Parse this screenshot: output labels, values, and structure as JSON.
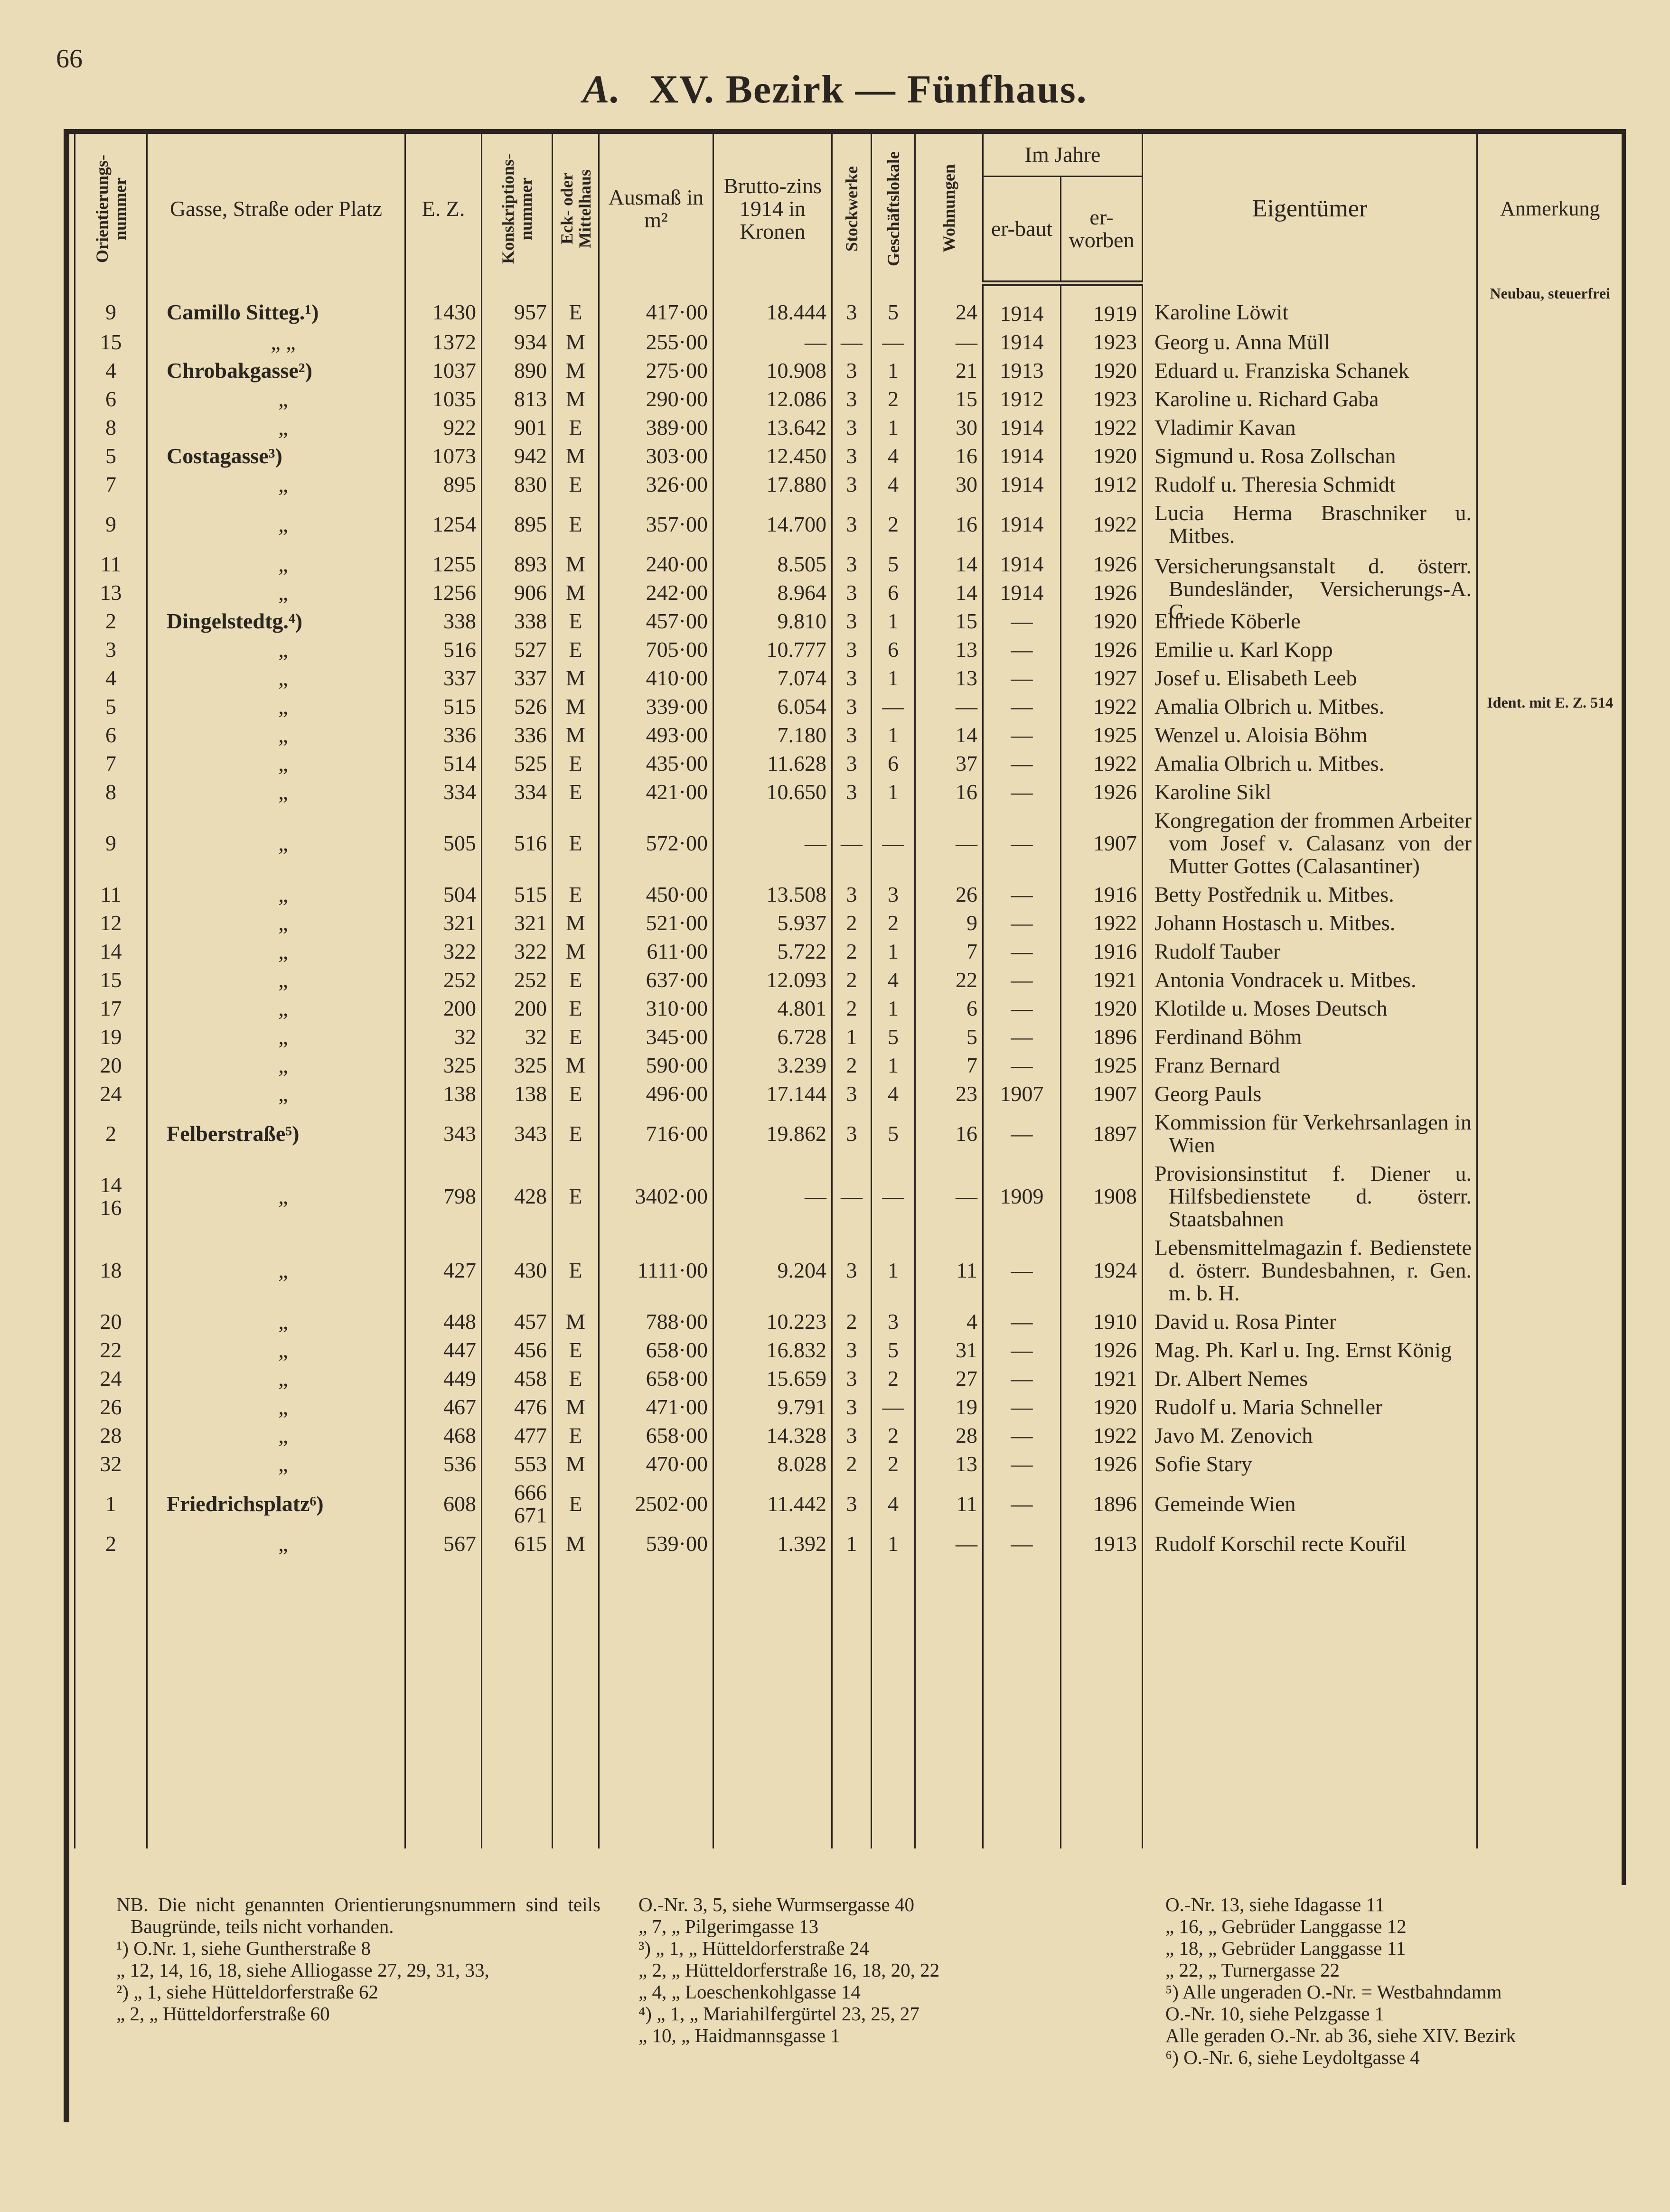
{
  "header": {
    "page_number": "66",
    "section": "A.",
    "title": "XV. Bezirk — Fünfhaus."
  },
  "table": {
    "columns": [
      "Orientierungs-nummer",
      "Gasse, Straße oder Platz",
      "E. Z.",
      "Konskriptions-nummer",
      "Eck- oder Mittelhaus",
      "Ausmaß in m²",
      "Brutto-zins 1914 in Kronen",
      "Stockwerke",
      "Geschäftslokale",
      "Wohnungen",
      "er-baut",
      "er-worben",
      "Eigentümer",
      "Anmerkung"
    ],
    "group": "Im Jahre",
    "rows": [
      [
        "9",
        "Camillo Sitteg.¹)",
        "1430",
        "957",
        "E",
        "417·00",
        "18.444",
        "3",
        "5",
        "24",
        "1914",
        "1919",
        "Karoline Löwit",
        "Neubau, steuerfrei"
      ],
      [
        "15",
        "„ „",
        "1372",
        "934",
        "M",
        "255·00",
        "—",
        "—",
        "—",
        "—",
        "1914",
        "1923",
        "Georg u. Anna Müll",
        null
      ],
      [
        "4",
        "Chrobakgasse²)",
        "1037",
        "890",
        "M",
        "275·00",
        "10.908",
        "3",
        "1",
        "21",
        "1913",
        "1920",
        "Eduard u. Franziska Schanek",
        null
      ],
      [
        "6",
        "„",
        "1035",
        "813",
        "M",
        "290·00",
        "12.086",
        "3",
        "2",
        "15",
        "1912",
        "1923",
        "Karoline u. Richard Gaba",
        null
      ],
      [
        "8",
        "„",
        "922",
        "901",
        "E",
        "389·00",
        "13.642",
        "3",
        "1",
        "30",
        "1914",
        "1922",
        "Vladimir Kavan",
        null
      ],
      [
        "5",
        "Costagasse³)",
        "1073",
        "942",
        "M",
        "303·00",
        "12.450",
        "3",
        "4",
        "16",
        "1914",
        "1920",
        "Sigmund u. Rosa Zollschan",
        null
      ],
      [
        "7",
        "„",
        "895",
        "830",
        "E",
        "326·00",
        "17.880",
        "3",
        "4",
        "30",
        "1914",
        "1912",
        "Rudolf u. Theresia Schmidt",
        null
      ],
      [
        "9",
        "„",
        "1254",
        "895",
        "E",
        "357·00",
        "14.700",
        "3",
        "2",
        "16",
        "1914",
        "1922",
        "Lucia Herma Braschniker u. Mitbes.",
        null
      ],
      [
        "11",
        "„",
        "1255",
        "893",
        "M",
        "240·00",
        "8.505",
        "3",
        "5",
        "14",
        "1914",
        "1926",
        "Versicherungsanstalt d. österr. Bundesländer, Versicherungs-A. G.",
        null
      ],
      [
        "13",
        "„",
        "1256",
        "906",
        "M",
        "242·00",
        "8.964",
        "3",
        "6",
        "14",
        "1914",
        "1926",
        null,
        null
      ],
      [
        "2",
        "Dingelstedtg.⁴)",
        "338",
        "338",
        "E",
        "457·00",
        "9.810",
        "3",
        "1",
        "15",
        "—",
        "1920",
        "Elfriede Köberle",
        null
      ],
      [
        "3",
        "„",
        "516",
        "527",
        "E",
        "705·00",
        "10.777",
        "3",
        "6",
        "13",
        "—",
        "1926",
        "Emilie u. Karl Kopp",
        null
      ],
      [
        "4",
        "„",
        "337",
        "337",
        "M",
        "410·00",
        "7.074",
        "3",
        "1",
        "13",
        "—",
        "1927",
        "Josef u. Elisabeth Leeb",
        null
      ],
      [
        "5",
        "„",
        "515",
        "526",
        "M",
        "339·00",
        "6.054",
        "3",
        "—",
        "—",
        "—",
        "1922",
        "Amalia Olbrich u. Mitbes.",
        "Ident. mit E. Z. 514"
      ],
      [
        "6",
        "„",
        "336",
        "336",
        "M",
        "493·00",
        "7.180",
        "3",
        "1",
        "14",
        "—",
        "1925",
        "Wenzel u. Aloisia Böhm",
        null
      ],
      [
        "7",
        "„",
        "514",
        "525",
        "E",
        "435·00",
        "11.628",
        "3",
        "6",
        "37",
        "—",
        "1922",
        "Amalia Olbrich u. Mitbes.",
        null
      ],
      [
        "8",
        "„",
        "334",
        "334",
        "E",
        "421·00",
        "10.650",
        "3",
        "1",
        "16",
        "—",
        "1926",
        "Karoline Sikl",
        null
      ],
      [
        "9",
        "„",
        "505",
        "516",
        "E",
        "572·00",
        "—",
        "—",
        "—",
        "—",
        "—",
        "1907",
        "Kongregation der frommen Arbeiter vom Josef v. Calasanz von der Mutter Gottes (Calasantiner)",
        null
      ],
      [
        "11",
        "„",
        "504",
        "515",
        "E",
        "450·00",
        "13.508",
        "3",
        "3",
        "26",
        "—",
        "1916",
        "Betty Postřednik u. Mitbes.",
        null
      ],
      [
        "12",
        "„",
        "321",
        "321",
        "M",
        "521·00",
        "5.937",
        "2",
        "2",
        "9",
        "—",
        "1922",
        "Johann Hostasch u. Mitbes.",
        null
      ],
      [
        "14",
        "„",
        "322",
        "322",
        "M",
        "611·00",
        "5.722",
        "2",
        "1",
        "7",
        "—",
        "1916",
        "Rudolf Tauber",
        null
      ],
      [
        "15",
        "„",
        "252",
        "252",
        "E",
        "637·00",
        "12.093",
        "2",
        "4",
        "22",
        "—",
        "1921",
        "Antonia Vondracek u. Mitbes.",
        null
      ],
      [
        "17",
        "„",
        "200",
        "200",
        "E",
        "310·00",
        "4.801",
        "2",
        "1",
        "6",
        "—",
        "1920",
        "Klotilde u. Moses Deutsch",
        null
      ],
      [
        "19",
        "„",
        "32",
        "32",
        "E",
        "345·00",
        "6.728",
        "1",
        "5",
        "5",
        "—",
        "1896",
        "Ferdinand Böhm",
        null
      ],
      [
        "20",
        "„",
        "325",
        "325",
        "M",
        "590·00",
        "3.239",
        "2",
        "1",
        "7",
        "—",
        "1925",
        "Franz Bernard",
        null
      ],
      [
        "24",
        "„",
        "138",
        "138",
        "E",
        "496·00",
        "17.144",
        "3",
        "4",
        "23",
        "1907",
        "1907",
        "Georg Pauls",
        null
      ],
      [
        "2",
        "Felberstraße⁵)",
        "343",
        "343",
        "E",
        "716·00",
        "19.862",
        "3",
        "5",
        "16",
        "—",
        "1897",
        "Kommission für Verkehrsanlagen in Wien",
        null
      ],
      [
        [
          "14",
          "16"
        ],
        "„",
        "798",
        "428",
        "E",
        "3402·00",
        "—",
        "—",
        "—",
        "—",
        "1909",
        "1908",
        "Provisionsinstitut f. Diener u. Hilfsbedienstete d. österr. Staatsbahnen",
        null
      ],
      [
        "18",
        "„",
        "427",
        "430",
        "E",
        "1111·00",
        "9.204",
        "3",
        "1",
        "11",
        "—",
        "1924",
        "Lebensmittelmagazin f. Bedienstete d. österr. Bundesbahnen, r. Gen. m. b. H.",
        null
      ],
      [
        "20",
        "„",
        "448",
        "457",
        "M",
        "788·00",
        "10.223",
        "2",
        "3",
        "4",
        "—",
        "1910",
        "David u. Rosa Pinter",
        null
      ],
      [
        "22",
        "„",
        "447",
        "456",
        "E",
        "658·00",
        "16.832",
        "3",
        "5",
        "31",
        "—",
        "1926",
        "Mag. Ph. Karl u. Ing. Ernst König",
        null
      ],
      [
        "24",
        "„",
        "449",
        "458",
        "E",
        "658·00",
        "15.659",
        "3",
        "2",
        "27",
        "—",
        "1921",
        "Dr. Albert Nemes",
        null
      ],
      [
        "26",
        "„",
        "467",
        "476",
        "M",
        "471·00",
        "9.791",
        "3",
        "—",
        "19",
        "—",
        "1920",
        "Rudolf u. Maria Schneller",
        null
      ],
      [
        "28",
        "„",
        "468",
        "477",
        "E",
        "658·00",
        "14.328",
        "3",
        "2",
        "28",
        "—",
        "1922",
        "Javo M. Zenovich",
        null
      ],
      [
        "32",
        "„",
        "536",
        "553",
        "M",
        "470·00",
        "8.028",
        "2",
        "2",
        "13",
        "—",
        "1926",
        "Sofie Stary",
        null
      ],
      [
        "1",
        "Friedrichsplatz⁶)",
        "608",
        [
          "666",
          "671"
        ],
        "E",
        "2502·00",
        "11.442",
        "3",
        "4",
        "11",
        "—",
        "1896",
        "Gemeinde Wien",
        null
      ],
      [
        "2",
        "„",
        "567",
        "615",
        "M",
        "539·00",
        "1.392",
        "1",
        "1",
        "—",
        "—",
        "1913",
        "Rudolf Korschil recte Kouřil",
        null
      ]
    ]
  },
  "footnotes": [
    [
      "NB. Die nicht genannten Orientierungsnummern sind teils Baugründe, teils nicht vorhanden.",
      "¹) O.Nr. 1, siehe Guntherstraße 8",
      "„ 12, 14, 16, 18, siehe Alliogasse 27, 29, 31, 33,",
      "²) „ 1, siehe Hütteldorferstraße 62",
      "„ 2, „ Hütteldorferstraße 60"
    ],
    [
      "O.-Nr. 3, 5, siehe Wurmsergasse 40",
      "„ 7, „ Pilgerimgasse 13",
      "³) „ 1, „ Hütteldorferstraße 24",
      "„ 2, „ Hütteldorferstraße 16, 18, 20, 22",
      "„ 4, „ Loeschenkohlgasse 14",
      "⁴) „ 1, „ Mariahilfergürtel 23, 25, 27",
      "„ 10, „ Haidmannsgasse 1"
    ],
    [
      "O.-Nr. 13, siehe Idagasse 11",
      "„ 16, „ Gebrüder Langgasse 12",
      "„ 18, „ Gebrüder Langgasse 11",
      "„ 22, „ Turnergasse 22",
      "⁵) Alle ungeraden O.-Nr. = Westbahndamm",
      "O.-Nr. 10, siehe Pelzgasse 1",
      "Alle geraden O.-Nr. ab 36, siehe XIV. Bezirk",
      "⁶) O.-Nr. 6, siehe Leydoltgasse 4"
    ]
  ]
}
